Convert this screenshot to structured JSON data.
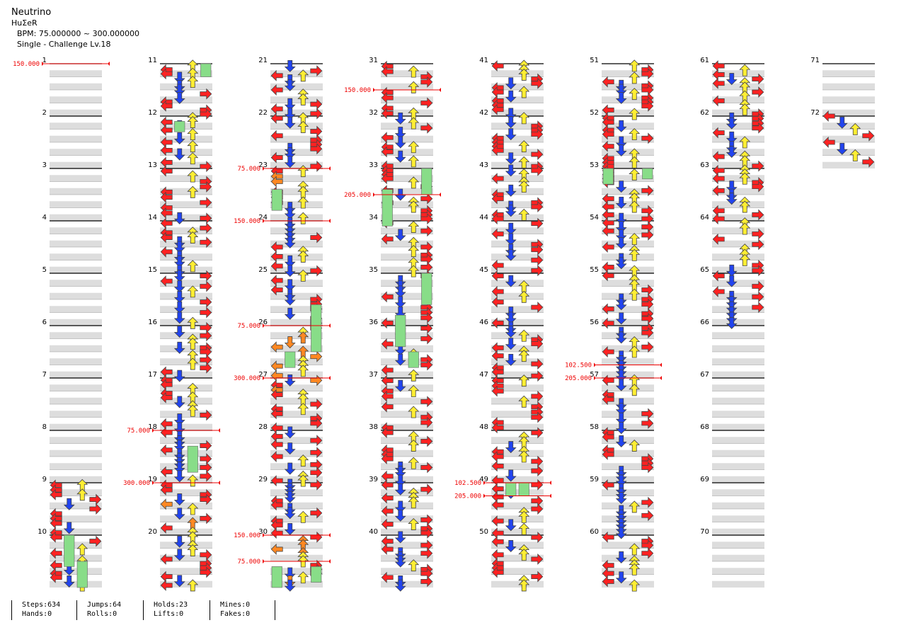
{
  "song": {
    "title": "Neutrino",
    "artist": "HuΣeR",
    "bpm_label": "BPM: 75.000000 ~ 300.000000",
    "difficulty_label": "Single - Challenge Lv.18"
  },
  "colors": {
    "left": "#ee2222",
    "down": "#2244ee",
    "up": "#ffee33",
    "right": "#ee2222",
    "eighth_blue": "#2255ff",
    "quarter_red": "#ff2222",
    "sixteenth_yellow": "#ffee22",
    "twelfth_orange": "#ff8822",
    "twentyfourth_purple": "#cc33ff",
    "hold": "#88dd88",
    "bpm_line": "#ee0000",
    "beat_band": "#dddddd"
  },
  "measures": {
    "count": 72,
    "per_column": 10,
    "labels": [
      "1",
      "2",
      "3",
      "4",
      "5",
      "6",
      "7",
      "8",
      "9",
      "10",
      "11",
      "12",
      "13",
      "14",
      "15",
      "16",
      "17",
      "18",
      "19",
      "20",
      "21",
      "22",
      "23",
      "24",
      "25",
      "26",
      "27",
      "28",
      "29",
      "30",
      "31",
      "32",
      "33",
      "34",
      "35",
      "36",
      "37",
      "38",
      "39",
      "40",
      "41",
      "42",
      "43",
      "44",
      "45",
      "46",
      "47",
      "48",
      "49",
      "50",
      "51",
      "52",
      "53",
      "54",
      "55",
      "56",
      "57",
      "58",
      "59",
      "60",
      "61",
      "62",
      "63",
      "64",
      "65",
      "66",
      "67",
      "68",
      "69",
      "70",
      "71",
      "72"
    ]
  },
  "bpm_changes": [
    {
      "measure": 1,
      "offset": 0.0,
      "label": "150.000"
    },
    {
      "measure": 18,
      "offset": 0.0,
      "label": "75.000"
    },
    {
      "measure": 19,
      "offset": 0.0,
      "label": "300.000"
    },
    {
      "measure": 23,
      "offset": 0.0,
      "label": "75.000"
    },
    {
      "measure": 24,
      "offset": 0.0,
      "label": "150.000"
    },
    {
      "measure": 26,
      "offset": 0.0,
      "label": "75.000"
    },
    {
      "measure": 27,
      "offset": 0.0,
      "label": "300.000"
    },
    {
      "measure": 30,
      "offset": 0.0,
      "label": "150.000"
    },
    {
      "measure": 30,
      "offset": 0.5,
      "label": "75.000"
    },
    {
      "measure": 31,
      "offset": 0.5,
      "label": "150.000"
    },
    {
      "measure": 33,
      "offset": 0.5,
      "label": "205.000"
    },
    {
      "measure": 49,
      "offset": 0.0,
      "label": "102.500"
    },
    {
      "measure": 49,
      "offset": 0.25,
      "label": "205.000"
    },
    {
      "measure": 56,
      "offset": 0.75,
      "label": "102.500"
    },
    {
      "measure": 57,
      "offset": 0.0,
      "label": "205.000"
    }
  ],
  "stats": {
    "steps": "Steps:634",
    "hands": "Hands:0",
    "jumps": "Jumps:64",
    "rolls": "Rolls:0",
    "holds": "Holds:23",
    "lifts": "Lifts:0",
    "mines": "Mines:0",
    "fakes": "Fakes:0"
  }
}
